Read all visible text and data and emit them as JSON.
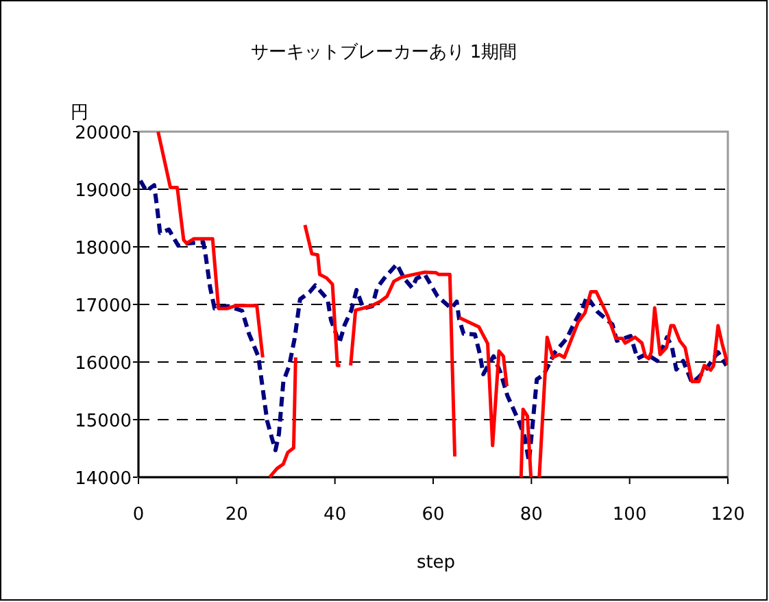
{
  "chart_data": {
    "type": "line",
    "title": "サーキットブレーカーあり  1期間",
    "xlabel": "step",
    "ylabel": "円",
    "xlim": [
      0,
      120
    ],
    "xticks": [
      0,
      20,
      40,
      60,
      80,
      100,
      120
    ],
    "ylim": [
      14000,
      20000
    ],
    "yticks": [
      14000,
      15000,
      16000,
      17000,
      18000,
      19000,
      20000
    ],
    "grid": "y",
    "series": [
      {
        "color": "#000080",
        "line_style": "dashed",
        "x": [
          0.4,
          1.6,
          3.2,
          3.7,
          4.4,
          6.2,
          8.1,
          9.9,
          13.2,
          13.7,
          14.6,
          15.5,
          18.3,
          21.1,
          22.5,
          24.4,
          25.3,
          26.2,
          27.2,
          27.9,
          28.6,
          29.5,
          30.7,
          31.8,
          32.9,
          34.8,
          36,
          38.5,
          39.2,
          40.9,
          42,
          43.3,
          44.4,
          45.8,
          47.6,
          48.6,
          50,
          52.6,
          54.1,
          55.7,
          56.6,
          58.3,
          60.9,
          63.7,
          64.8,
          65.3,
          66.2,
          68.5,
          69.5,
          70.2,
          72.3,
          73.7,
          75.1,
          77.4,
          78.6,
          79.5,
          80.2,
          81.1,
          82.5,
          84.8,
          87.2,
          88.8,
          90.4,
          91.3,
          93.5,
          96.5,
          97.4,
          100.2,
          101.6,
          103.4,
          105.6,
          107.6,
          108.6,
          109.5,
          110.9,
          112.7,
          114.1,
          115.5,
          118,
          119.7
        ],
        "values": [
          19150,
          18970,
          19070,
          18750,
          18240,
          18300,
          18020,
          18060,
          18080,
          17840,
          17290,
          16930,
          16970,
          16890,
          16490,
          16100,
          15540,
          14980,
          14670,
          14470,
          14750,
          15660,
          15940,
          16410,
          17090,
          17210,
          17330,
          17090,
          16730,
          16330,
          16650,
          16890,
          17250,
          16930,
          16970,
          17290,
          17450,
          17700,
          17450,
          17290,
          17450,
          17520,
          17140,
          16930,
          17050,
          16740,
          16490,
          16480,
          16140,
          15790,
          16100,
          15820,
          15420,
          14980,
          14710,
          14270,
          14870,
          15700,
          15780,
          16170,
          16410,
          16690,
          16930,
          17140,
          16870,
          16650,
          16370,
          16450,
          16060,
          16140,
          16020,
          16430,
          16270,
          15870,
          16020,
          15640,
          15740,
          15870,
          16170,
          15940
        ]
      },
      {
        "color": "#ff0000",
        "line_style": "solid",
        "x": [
          4,
          6.5,
          7.9,
          9.2,
          9.8,
          11.3,
          15.1,
          16.3,
          18.1,
          19.9,
          24.1,
          25.3
        ],
        "values": [
          20000,
          19030,
          19030,
          18120,
          18060,
          18140,
          18140,
          16930,
          16930,
          16980,
          16980,
          16080
        ]
      },
      {
        "color": "#ff0000",
        "line_style": "solid",
        "x": [
          26.7,
          28.2,
          29.5,
          30.4,
          31.6,
          32
        ],
        "values": [
          14000,
          14150,
          14230,
          14430,
          14510,
          16080
        ]
      },
      {
        "color": "#ff0000",
        "line_style": "solid",
        "x": [
          33.9,
          35.3,
          36.5,
          36.9,
          38.3,
          39.5,
          40.5,
          41.1
        ],
        "values": [
          18380,
          17880,
          17860,
          17520,
          17460,
          17350,
          15940,
          15940
        ]
      },
      {
        "color": "#ff0000",
        "line_style": "solid",
        "x": [
          43.2,
          44.2,
          47.3,
          49.2,
          50.6,
          52,
          53.5,
          55.5,
          58.3,
          60.6,
          61.1,
          63.4,
          64.4
        ],
        "values": [
          15940,
          16900,
          16970,
          17050,
          17140,
          17400,
          17470,
          17510,
          17560,
          17550,
          17520,
          17520,
          14360
        ]
      },
      {
        "color": "#ff0000",
        "line_style": "solid",
        "x": [
          65.3,
          69.3,
          71.1,
          72.1,
          73.4,
          74.3,
          75
        ],
        "values": [
          16770,
          16610,
          16320,
          14550,
          16190,
          16100,
          15580
        ]
      },
      {
        "color": "#ff0000",
        "line_style": "solid",
        "x": [
          77.9,
          78.3,
          79.2,
          79.9
        ],
        "values": [
          14000,
          15180,
          15060,
          14000
        ]
      },
      {
        "color": "#ff0000",
        "line_style": "solid",
        "x": [
          81.6,
          83.2,
          84.4,
          85.7,
          86.7,
          89.5,
          90.9,
          92.1,
          93.2,
          95.5,
          97.2,
          98.5,
          99.1,
          101.1,
          102.5,
          103.2,
          103.9,
          104.4,
          105.1,
          106.2,
          107.5,
          108.4,
          109,
          110.2,
          111.3,
          112.7,
          114.1,
          115.2,
          116.5,
          117.1,
          118,
          118.8,
          120
        ],
        "values": [
          14000,
          16430,
          16080,
          16130,
          16080,
          16690,
          16850,
          17220,
          17220,
          16810,
          16410,
          16410,
          16330,
          16430,
          16330,
          16100,
          16060,
          16170,
          16940,
          16130,
          16250,
          16630,
          16630,
          16370,
          16250,
          15660,
          15660,
          15940,
          15860,
          15940,
          16630,
          16330,
          15950
        ]
      }
    ]
  }
}
